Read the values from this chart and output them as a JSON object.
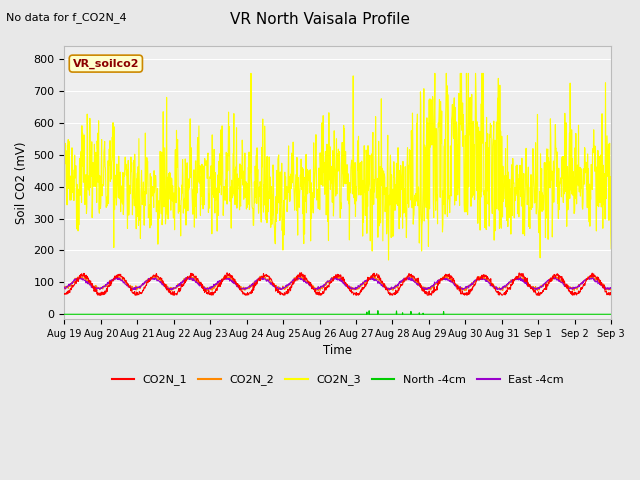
{
  "title": "VR North Vaisala Profile",
  "subtitle": "No data for f_CO2N_4",
  "ylabel": "Soil CO2 (mV)",
  "xlabel": "Time",
  "ylim": [
    -15,
    840
  ],
  "legend_box_label": "VR_soilco2",
  "series": {
    "CO2N_1": {
      "color": "#ff0000",
      "linewidth": 0.8
    },
    "CO2N_2": {
      "color": "#ff8800",
      "linewidth": 0.8
    },
    "CO2N_3": {
      "color": "#ffff00",
      "linewidth": 0.8
    },
    "North_4cm": {
      "color": "#00cc00",
      "linewidth": 0.8
    },
    "East_4cm": {
      "color": "#9900cc",
      "linewidth": 0.8
    }
  },
  "bg_color": "#e8e8e8",
  "plot_bg_color": "#eeeeee",
  "n_days": 15,
  "points_per_day": 96,
  "seed": 12345
}
